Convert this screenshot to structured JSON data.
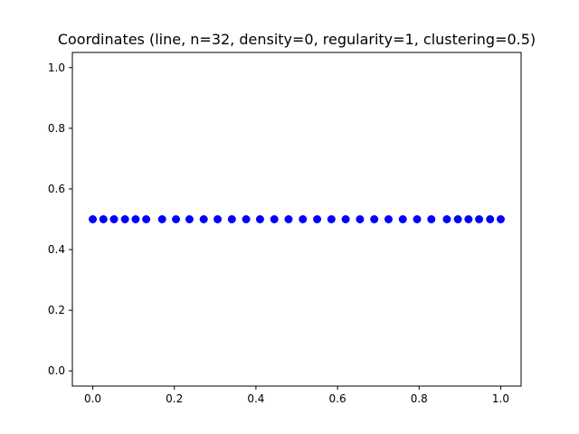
{
  "chart_data": {
    "type": "scatter",
    "title": "Coordinates (line, n=32, density=0, regularity=1, clustering=0.5)",
    "xlabel": "",
    "ylabel": "",
    "xlim": [
      -0.05,
      1.05
    ],
    "ylim": [
      -0.05,
      1.05
    ],
    "grid": false,
    "marker_color": "#0000ff",
    "x_ticks": [
      0.0,
      0.2,
      0.4,
      0.6,
      0.8,
      1.0
    ],
    "x_tick_labels": [
      "0.0",
      "0.2",
      "0.4",
      "0.6",
      "0.8",
      "1.0"
    ],
    "y_ticks": [
      0.0,
      0.2,
      0.4,
      0.6,
      0.8,
      1.0
    ],
    "y_tick_labels": [
      "0.0",
      "0.2",
      "0.4",
      "0.6",
      "0.8",
      "1.0"
    ],
    "series": [
      {
        "x": [
          0.0,
          0.026,
          0.052,
          0.079,
          0.105,
          0.131,
          0.17,
          0.204,
          0.237,
          0.272,
          0.306,
          0.341,
          0.376,
          0.41,
          0.445,
          0.48,
          0.515,
          0.55,
          0.585,
          0.62,
          0.655,
          0.69,
          0.725,
          0.76,
          0.795,
          0.83,
          0.868,
          0.895,
          0.921,
          0.947,
          0.974,
          1.0
        ],
        "y": [
          0.5,
          0.5,
          0.5,
          0.5,
          0.5,
          0.5,
          0.5,
          0.5,
          0.5,
          0.5,
          0.5,
          0.5,
          0.5,
          0.5,
          0.5,
          0.5,
          0.5,
          0.5,
          0.5,
          0.5,
          0.5,
          0.5,
          0.5,
          0.5,
          0.5,
          0.5,
          0.5,
          0.5,
          0.5,
          0.5,
          0.5,
          0.5
        ]
      }
    ]
  }
}
